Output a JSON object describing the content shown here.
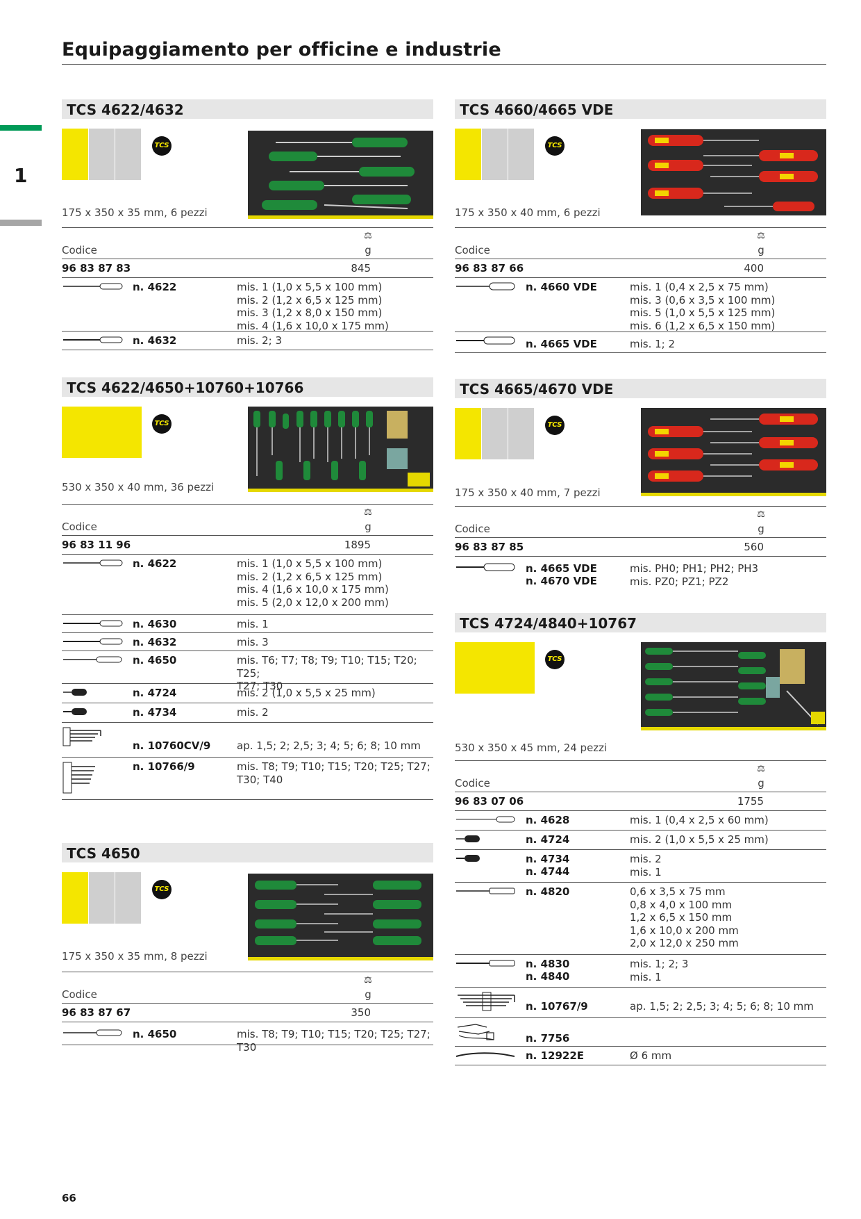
{
  "page": {
    "title": "Equipaggiamento per officine e industrie",
    "chapter": "1",
    "page_number": "66"
  },
  "common": {
    "codice_label": "Codice",
    "weight_unit": "g",
    "scale_icon": "scale-icon",
    "tcs_badge": "TCS"
  },
  "colors": {
    "accent_yellow": "#f4e600",
    "chapter_green": "#009a57",
    "swatch_grey": "#cfcfcf",
    "heading_bg": "#e6e6e6"
  },
  "sections": [
    {
      "title": "TCS 4622/4632",
      "dims": "175 x 350 x 35 mm, 6 pezzi",
      "code": "96 83 87 83",
      "weight": "845",
      "items": [
        {
          "icon": "screwdriver-slotted-icon",
          "number": "n. 4622",
          "desc": "mis. 1 (1,0 x 5,5 x 100 mm)\nmis. 2 (1,2 x 6,5 x 125 mm)\nmis. 3 (1,2 x 8,0 x 150 mm)\nmis. 4 (1,6 x 10,0 x 175 mm)"
        },
        {
          "icon": "screwdriver-phillips-icon",
          "number": "n. 4632",
          "desc": "mis. 2; 3"
        }
      ]
    },
    {
      "title": "TCS 4622/4650+10760+10766",
      "dims": "530 x 350 x 40 mm, 36 pezzi",
      "code": "96 83 11 96",
      "weight": "1895",
      "items": [
        {
          "icon": "screwdriver-slotted-icon",
          "number": "n. 4622",
          "desc": "mis. 1 (1,0 x 5,5 x 100 mm)\nmis. 2 (1,2 x 6,5 x 125 mm)\nmis. 4 (1,6 x 10,0 x 175 mm)\nmis. 5 (2,0 x 12,0 x 200 mm)"
        },
        {
          "icon": "screwdriver-pozidriv-icon",
          "number": "n. 4630",
          "desc": "mis. 1"
        },
        {
          "icon": "screwdriver-phillips-icon",
          "number": "n. 4632",
          "desc": "mis. 3"
        },
        {
          "icon": "screwdriver-torx-icon",
          "number": "n. 4650",
          "desc": "mis. T6; T7; T8; T9; T10; T15; T20; T25;\nT27; T30"
        },
        {
          "icon": "stubby-screwdriver-icon",
          "number": "n. 4724",
          "desc": "mis. 2 (1,0 x 5,5 x 25 mm)"
        },
        {
          "icon": "stubby-phillips-icon",
          "number": "n. 4734",
          "desc": "mis. 2"
        },
        {
          "icon": "hex-key-set-icon",
          "number": "n. 10760CV/9",
          "desc": "ap. 1,5; 2; 2,5; 3; 4; 5; 6; 8; 10 mm"
        },
        {
          "icon": "torx-key-set-icon",
          "number": "n. 10766/9",
          "desc": "mis. T8; T9; T10; T15; T20; T25; T27;\nT30; T40"
        }
      ]
    },
    {
      "title": "TCS 4650",
      "dims": "175 x 350 x 35 mm, 8 pezzi",
      "code": "96 83 87 67",
      "weight": "350",
      "items": [
        {
          "icon": "screwdriver-torx-icon",
          "number": "n. 4650",
          "desc": "mis. T8; T9; T10; T15; T20; T25; T27; T30"
        }
      ]
    },
    {
      "title": "TCS 4660/4665 VDE",
      "dims": "175 x 350 x 40 mm, 6 pezzi",
      "code": "96 83 87 66",
      "weight": "400",
      "items": [
        {
          "icon": "vde-slotted-screwdriver-icon",
          "number": "n. 4660 VDE",
          "desc": "mis. 1 (0,4 x 2,5 x 75 mm)\nmis. 3 (0,6 x 3,5 x 100 mm)\nmis. 5 (1,0 x 5,5 x 125 mm)\nmis. 6 (1,2 x 6,5 x 150 mm)"
        },
        {
          "icon": "vde-phillips-screwdriver-icon",
          "number": "n. 4665 VDE",
          "desc": "mis. 1; 2"
        }
      ]
    },
    {
      "title": "TCS 4665/4670 VDE",
      "dims": "175 x 350 x 40 mm, 7 pezzi",
      "code": "96 83 87 85",
      "weight": "560",
      "items": [
        {
          "icon": "vde-phillips-screwdriver-icon",
          "number": "n. 4665 VDE\nn. 4670 VDE",
          "desc": "mis. PH0; PH1; PH2; PH3\nmis. PZ0; PZ1; PZ2"
        }
      ]
    },
    {
      "title": "TCS 4724/4840+10767",
      "dims": "530 x 350 x 45 mm, 24 pezzi",
      "code": "96 83 07 06",
      "weight": "1755",
      "items": [
        {
          "icon": "precision-screwdriver-icon",
          "number": "n. 4628",
          "desc": "mis. 1 (0,4 x 2,5 x 60 mm)"
        },
        {
          "icon": "stubby-screwdriver-icon",
          "number": "n. 4724",
          "desc": "mis. 2 (1,0 x 5,5 x 25 mm)"
        },
        {
          "icon": "stubby-phillips-icon",
          "number": "n. 4734\nn. 4744",
          "desc": "mis. 2\nmis. 1"
        },
        {
          "icon": "screwdriver-hex-bolster-icon",
          "number": "n. 4820",
          "desc": "0,6 x 3,5 x 75 mm\n0,8 x 4,0 x 100 mm\n1,2 x 6,5 x 150 mm\n1,6 x 10,0 x 200 mm\n2,0 x 12,0 x 250 mm"
        },
        {
          "icon": "screwdriver-hex-bolster-phillips-icon",
          "number": "n. 4830\nn. 4840",
          "desc": "mis. 1; 2; 3\nmis. 1"
        },
        {
          "icon": "hex-key-set-icon",
          "number": "n. 10767/9",
          "desc": "ap. 1,5; 2; 2,5; 3; 4; 5; 6; 8; 10 mm"
        },
        {
          "icon": "voltage-tester-icon",
          "number": "n. 7756",
          "desc": ""
        },
        {
          "icon": "flexible-magnetic-pickup-icon",
          "number": "n. 12922E",
          "desc": "Ø 6 mm"
        }
      ]
    }
  ]
}
